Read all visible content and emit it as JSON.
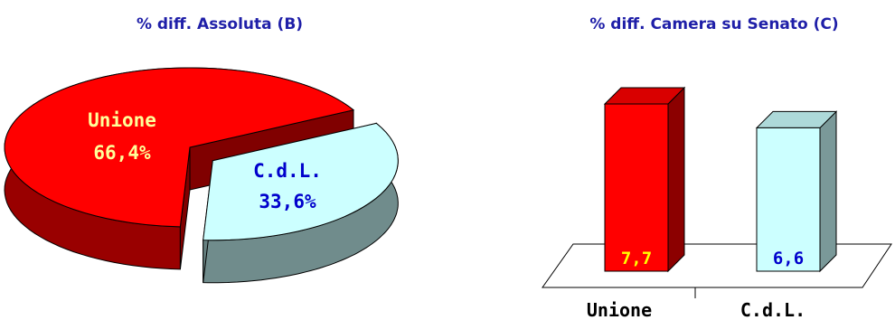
{
  "chart_data": [
    {
      "type": "pie",
      "title": "% diff. Assoluta (B)",
      "categories": [
        "Unione",
        "C.d.L."
      ],
      "values": [
        66.4,
        33.6
      ],
      "value_labels": [
        "66,4%",
        "33,6%"
      ],
      "slice_colors": [
        "#ff0000",
        "#ccffff"
      ],
      "label_colors": [
        "#ffff99",
        "#0000cc"
      ],
      "exploded": "C.d.L.",
      "style": "3d"
    },
    {
      "type": "bar",
      "title": "% diff. Camera su Senato (C)",
      "categories": [
        "Unione",
        "C.d.L."
      ],
      "values": [
        7.7,
        6.6
      ],
      "value_labels": [
        "7,7",
        "6,6"
      ],
      "bar_colors": [
        "#ff0000",
        "#ccffff"
      ],
      "label_colors": [
        "#ffff00",
        "#0000cc"
      ],
      "ylim": [
        0,
        7.7
      ],
      "style": "3d"
    }
  ]
}
